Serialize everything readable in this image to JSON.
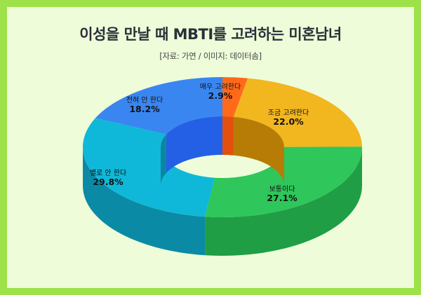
{
  "header": {
    "title": "이성을 만날 때 MBTI를 고려하는 미혼남녀",
    "source": "[자료: 가연 / 이미지: 데이터솜]"
  },
  "chart_data": {
    "type": "pie",
    "style": "3d-donut",
    "categories": [
      "매우 고려한다",
      "조금 고려한다",
      "보통이다",
      "별로 안 한다",
      "전혀 안 한다"
    ],
    "values": [
      2.9,
      22.0,
      27.1,
      29.8,
      18.2
    ],
    "value_labels": [
      "2.9%",
      "22.0%",
      "27.1%",
      "29.8%",
      "18.2%"
    ],
    "colors": [
      "#ff6a1a",
      "#f2b61f",
      "#2fc65b",
      "#0fb8d9",
      "#3a86f0"
    ],
    "side_colors": [
      "#d84f10",
      "#b88c12",
      "#1f9e45",
      "#0b8aa6",
      "#2456c9"
    ],
    "inner_colors": [
      "#e24f0f",
      "#b77c06",
      "#1c8f3c",
      "#0a86a0",
      "#2360e6"
    ],
    "legend": "none"
  }
}
